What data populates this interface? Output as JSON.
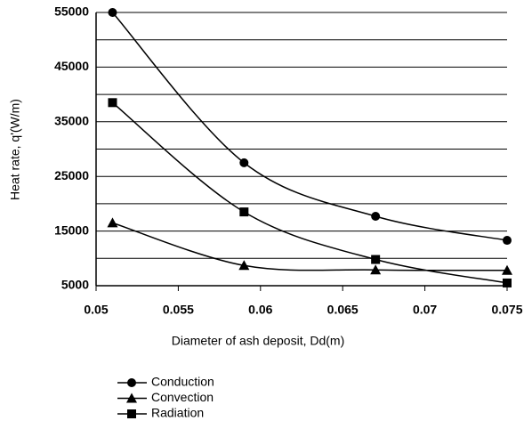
{
  "chart_data": {
    "type": "line",
    "x_label": "Diameter of ash deposit, Dd(m)",
    "y_label": "Heat rate, q'(W/m)",
    "x": [
      0.051,
      0.059,
      0.067,
      0.075
    ],
    "series": [
      {
        "name": "Conduction",
        "color": "#000000",
        "marker": "circle",
        "values": [
          55000,
          27500,
          17700,
          13300
        ]
      },
      {
        "name": "Convection",
        "color": "#000000",
        "marker": "triangle",
        "values": [
          16500,
          8700,
          7900,
          7800
        ]
      },
      {
        "name": "Radiation",
        "color": "#000000",
        "marker": "square",
        "values": [
          38500,
          18500,
          9800,
          5500
        ]
      }
    ],
    "xlim": [
      0.05,
      0.075
    ],
    "xticks": [
      0.05,
      0.055,
      0.06,
      0.065,
      0.07,
      0.075
    ],
    "ylim": [
      5000,
      55000
    ],
    "yticks": [
      5000,
      15000,
      25000,
      35000,
      45000,
      55000
    ],
    "ygrid": [
      5000,
      10000,
      15000,
      20000,
      25000,
      30000,
      35000,
      40000,
      45000,
      50000,
      55000
    ],
    "grid": true,
    "legend": "bottom-left"
  }
}
